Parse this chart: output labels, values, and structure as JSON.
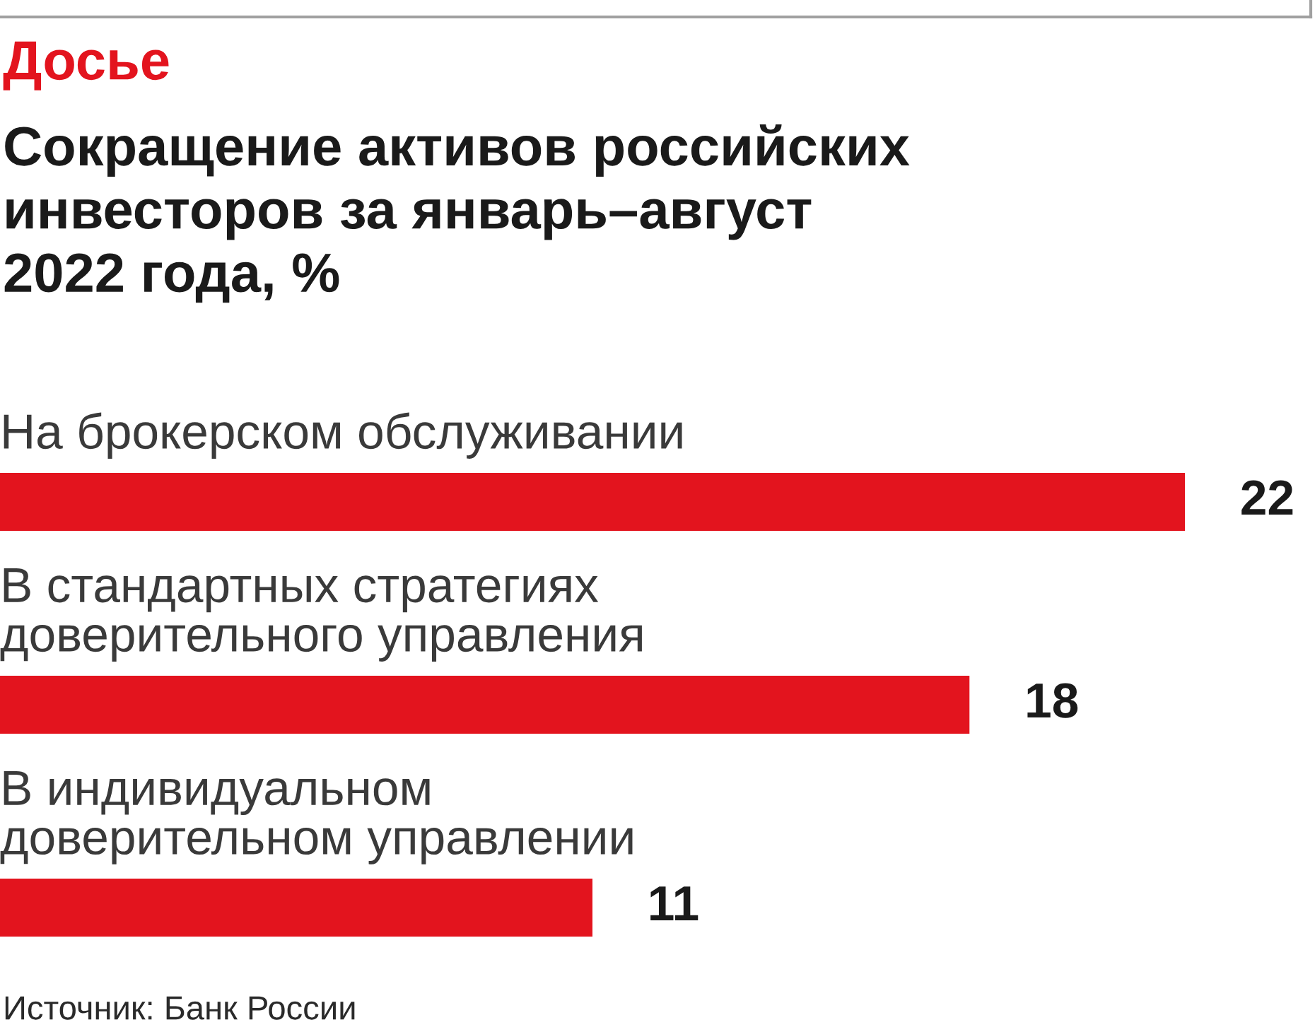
{
  "chart_data": {
    "type": "bar",
    "orientation": "horizontal",
    "subtitle": "Досье",
    "title": "Сокращение активов российских\nинвесторов за январь–август\n2022 года, %",
    "categories": [
      "На брокерском обслуживании",
      "В стандартных стратегиях\nдоверительного управления",
      "В индивидуальном\nдоверительном управлении"
    ],
    "values": [
      22,
      18,
      11
    ],
    "color": "#e3141e",
    "data_labels": true,
    "annotations": [
      "Источник: Банк России"
    ]
  }
}
